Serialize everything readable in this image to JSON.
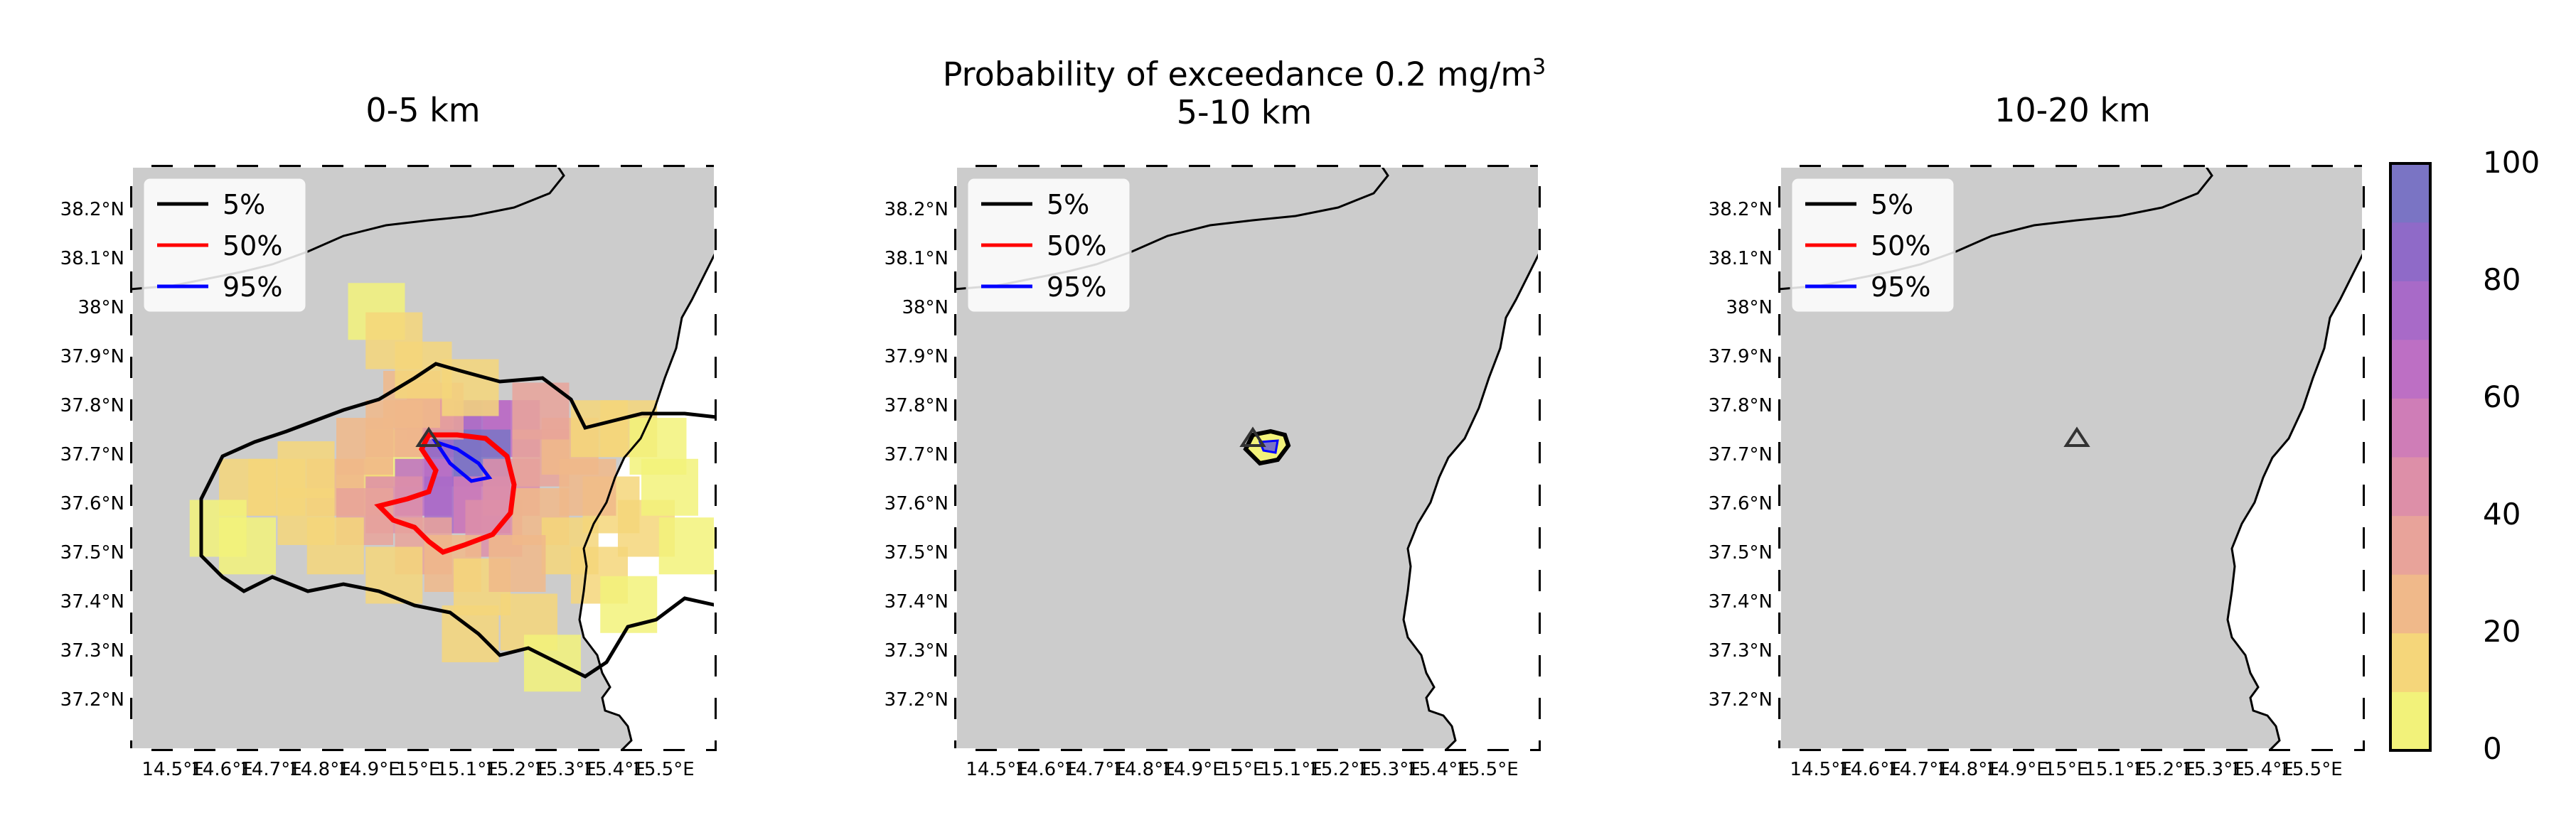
{
  "figure": {
    "suptitle_main": "Probability of exceedance 0.2 mg/m",
    "suptitle_sup": "3",
    "suptitle_line2": "5-10 km"
  },
  "panels": [
    {
      "title": "0-5 km"
    },
    {
      "title": ""
    },
    {
      "title": "10-20 km"
    }
  ],
  "legend": {
    "entries": [
      {
        "label": "5%",
        "color": "#000000"
      },
      {
        "label": "50%",
        "color": "#ff0000"
      },
      {
        "label": "95%",
        "color": "#0000ff"
      }
    ]
  },
  "axes": {
    "lat_ticks": [
      "38.2°N",
      "38.1°N",
      "38°N",
      "37.9°N",
      "37.8°N",
      "37.7°N",
      "37.6°N",
      "37.5°N",
      "37.4°N",
      "37.3°N",
      "37.2°N"
    ],
    "lon_ticks": [
      "14.5°E",
      "14.6°E",
      "14.7°E",
      "14.8°E",
      "14.9°E",
      "15°E",
      "15.1°E",
      "15.2°E",
      "15.3°E",
      "15.4°E",
      "15.5°E"
    ]
  },
  "colorbar": {
    "ticks": [
      "100",
      "80",
      "60",
      "40",
      "20",
      "0"
    ],
    "colors": [
      "#f2f27a",
      "#f5d67a",
      "#f0b98a",
      "#e8a39a",
      "#dd8fa8",
      "#cf7db7",
      "#bd6fc4",
      "#a86ac8",
      "#8f6ac8",
      "#7a74c4"
    ]
  },
  "colors": {
    "land": "#cccccc",
    "sea": "#ffffff",
    "coast": "#000000",
    "volcano_marker": "#333333"
  }
}
